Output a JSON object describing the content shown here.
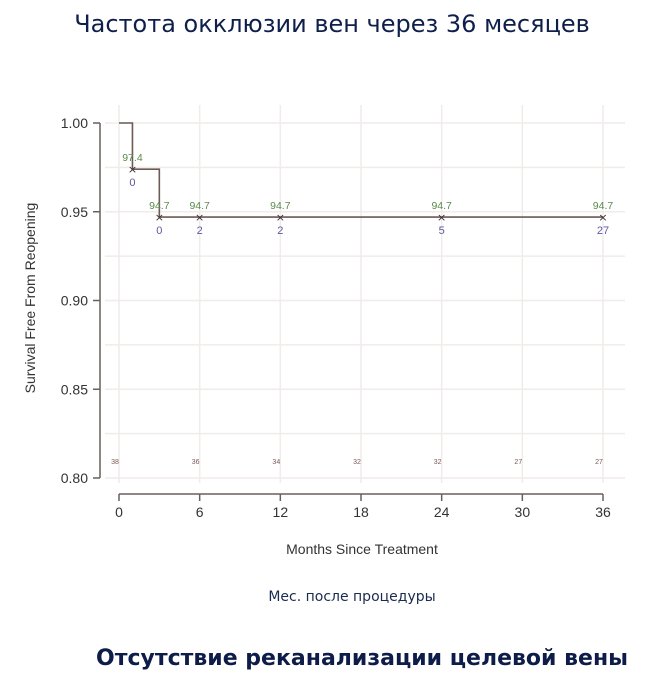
{
  "header": {
    "title": "Частота окклюзии вен через 36 месяцев"
  },
  "caption": "Мес. после процедуры",
  "footer": {
    "title": "Отсутствие реканализации целевой вены"
  },
  "colors": {
    "title": "#0f1f4b",
    "curve": "#6b5a55",
    "survival_label": "#5a8a4a",
    "censor_label": "#5a5aa0",
    "at_risk": "#7a5a5a",
    "grid": "#f0ecea"
  },
  "chart_data": {
    "type": "line",
    "subtype": "kaplan-meier step",
    "title": "",
    "xlabel": "Months Since Treatment",
    "ylabel": "Survival Free From Reopening",
    "xlim": [
      0,
      36
    ],
    "ylim": [
      0.8,
      1.0
    ],
    "x_ticks": [
      0,
      6,
      12,
      18,
      24,
      30,
      36
    ],
    "y_ticks": [
      "0.80",
      "0.85",
      "0.90",
      "0.95",
      "1.00"
    ],
    "grid": true,
    "step_curve": [
      {
        "x": 0,
        "y": 1.0
      },
      {
        "x": 1,
        "y": 1.0
      },
      {
        "x": 1,
        "y": 0.974
      },
      {
        "x": 3,
        "y": 0.974
      },
      {
        "x": 3,
        "y": 0.947
      },
      {
        "x": 36,
        "y": 0.947
      }
    ],
    "marked_points": [
      {
        "x": 1,
        "y": 0.974,
        "survival_label": "97.4",
        "censored": "0"
      },
      {
        "x": 3,
        "y": 0.947,
        "survival_label": "94.7",
        "censored": "0"
      },
      {
        "x": 6,
        "y": 0.947,
        "survival_label": "94.7",
        "censored": "2"
      },
      {
        "x": 12,
        "y": 0.947,
        "survival_label": "94.7",
        "censored": "2"
      },
      {
        "x": 24,
        "y": 0.947,
        "survival_label": "94.7",
        "censored": "5"
      },
      {
        "x": 36,
        "y": 0.947,
        "survival_label": "94.7",
        "censored": "27"
      }
    ],
    "at_risk": [
      {
        "x": 0,
        "n": "38"
      },
      {
        "x": 6,
        "n": "36"
      },
      {
        "x": 12,
        "n": "34"
      },
      {
        "x": 18,
        "n": "32"
      },
      {
        "x": 24,
        "n": "32"
      },
      {
        "x": 30,
        "n": "27"
      },
      {
        "x": 36,
        "n": "27"
      }
    ]
  }
}
